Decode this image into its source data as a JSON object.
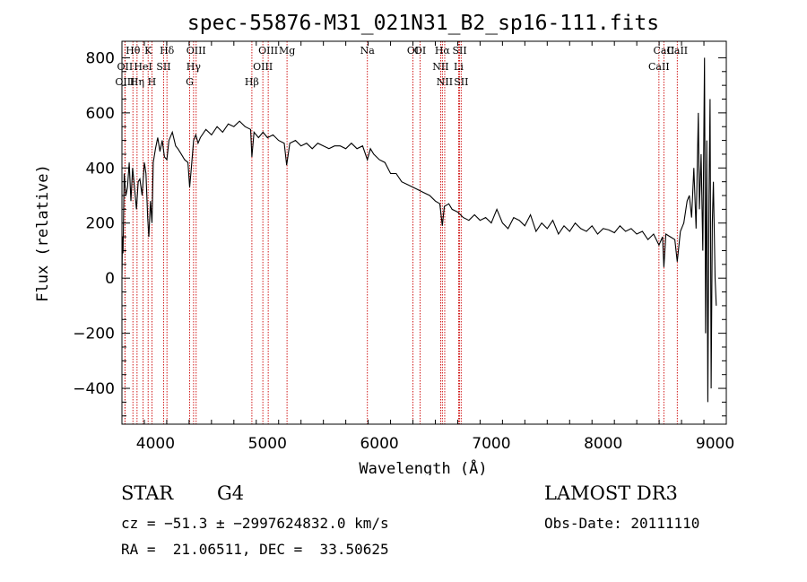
{
  "chart_data": {
    "type": "line",
    "title": "spec-55876-M31_021N31_B2_sp16-111.fits",
    "xlabel": "Wavelength (Å)",
    "ylabel": "Flux (relative)",
    "xlim": [
      3700,
      9100
    ],
    "ylim": [
      -530,
      860
    ],
    "x_ticks": [
      4000,
      5000,
      6000,
      7000,
      8000,
      9000
    ],
    "y_ticks": [
      -400,
      -200,
      0,
      200,
      400,
      600,
      800
    ],
    "grid": false,
    "series": [
      {
        "name": "flux",
        "points": [
          [
            3700,
            0
          ],
          [
            3705,
            150
          ],
          [
            3710,
            90
          ],
          [
            3720,
            380
          ],
          [
            3735,
            300
          ],
          [
            3750,
            330
          ],
          [
            3765,
            420
          ],
          [
            3780,
            280
          ],
          [
            3795,
            400
          ],
          [
            3810,
            340
          ],
          [
            3830,
            250
          ],
          [
            3845,
            350
          ],
          [
            3860,
            360
          ],
          [
            3880,
            300
          ],
          [
            3900,
            420
          ],
          [
            3915,
            380
          ],
          [
            3930,
            220
          ],
          [
            3940,
            150
          ],
          [
            3955,
            280
          ],
          [
            3968,
            200
          ],
          [
            3980,
            420
          ],
          [
            4000,
            470
          ],
          [
            4020,
            510
          ],
          [
            4040,
            460
          ],
          [
            4060,
            500
          ],
          [
            4080,
            440
          ],
          [
            4101,
            430
          ],
          [
            4120,
            500
          ],
          [
            4150,
            530
          ],
          [
            4180,
            480
          ],
          [
            4200,
            470
          ],
          [
            4230,
            450
          ],
          [
            4260,
            430
          ],
          [
            4290,
            420
          ],
          [
            4305,
            330
          ],
          [
            4320,
            400
          ],
          [
            4340,
            500
          ],
          [
            4360,
            520
          ],
          [
            4380,
            490
          ],
          [
            4400,
            510
          ],
          [
            4450,
            540
          ],
          [
            4500,
            520
          ],
          [
            4550,
            550
          ],
          [
            4600,
            530
          ],
          [
            4650,
            560
          ],
          [
            4700,
            550
          ],
          [
            4750,
            570
          ],
          [
            4800,
            550
          ],
          [
            4850,
            540
          ],
          [
            4861,
            440
          ],
          [
            4880,
            530
          ],
          [
            4920,
            510
          ],
          [
            4960,
            530
          ],
          [
            5000,
            510
          ],
          [
            5050,
            520
          ],
          [
            5100,
            500
          ],
          [
            5150,
            490
          ],
          [
            5172,
            410
          ],
          [
            5200,
            490
          ],
          [
            5250,
            500
          ],
          [
            5300,
            480
          ],
          [
            5350,
            490
          ],
          [
            5400,
            470
          ],
          [
            5450,
            490
          ],
          [
            5500,
            480
          ],
          [
            5550,
            470
          ],
          [
            5600,
            480
          ],
          [
            5650,
            480
          ],
          [
            5700,
            470
          ],
          [
            5750,
            490
          ],
          [
            5800,
            470
          ],
          [
            5850,
            480
          ],
          [
            5893,
            430
          ],
          [
            5920,
            470
          ],
          [
            5950,
            450
          ],
          [
            6000,
            430
          ],
          [
            6050,
            420
          ],
          [
            6100,
            380
          ],
          [
            6150,
            380
          ],
          [
            6200,
            350
          ],
          [
            6250,
            340
          ],
          [
            6300,
            330
          ],
          [
            6350,
            320
          ],
          [
            6400,
            310
          ],
          [
            6450,
            300
          ],
          [
            6500,
            280
          ],
          [
            6540,
            270
          ],
          [
            6563,
            190
          ],
          [
            6580,
            260
          ],
          [
            6620,
            270
          ],
          [
            6650,
            250
          ],
          [
            6700,
            240
          ],
          [
            6750,
            220
          ],
          [
            6800,
            210
          ],
          [
            6850,
            230
          ],
          [
            6900,
            210
          ],
          [
            6950,
            220
          ],
          [
            7000,
            200
          ],
          [
            7050,
            250
          ],
          [
            7100,
            200
          ],
          [
            7150,
            180
          ],
          [
            7200,
            220
          ],
          [
            7250,
            210
          ],
          [
            7300,
            190
          ],
          [
            7350,
            230
          ],
          [
            7400,
            170
          ],
          [
            7450,
            200
          ],
          [
            7500,
            180
          ],
          [
            7550,
            210
          ],
          [
            7600,
            160
          ],
          [
            7650,
            190
          ],
          [
            7700,
            170
          ],
          [
            7750,
            200
          ],
          [
            7800,
            180
          ],
          [
            7850,
            170
          ],
          [
            7900,
            190
          ],
          [
            7950,
            160
          ],
          [
            8000,
            180
          ],
          [
            8050,
            175
          ],
          [
            8100,
            165
          ],
          [
            8150,
            190
          ],
          [
            8200,
            170
          ],
          [
            8250,
            180
          ],
          [
            8300,
            160
          ],
          [
            8350,
            170
          ],
          [
            8400,
            140
          ],
          [
            8450,
            160
          ],
          [
            8498,
            120
          ],
          [
            8530,
            150
          ],
          [
            8542,
            40
          ],
          [
            8560,
            160
          ],
          [
            8600,
            150
          ],
          [
            8640,
            140
          ],
          [
            8662,
            60
          ],
          [
            8690,
            170
          ],
          [
            8720,
            200
          ],
          [
            8750,
            280
          ],
          [
            8770,
            300
          ],
          [
            8790,
            220
          ],
          [
            8810,
            400
          ],
          [
            8830,
            180
          ],
          [
            8850,
            600
          ],
          [
            8860,
            250
          ],
          [
            8875,
            450
          ],
          [
            8890,
            100
          ],
          [
            8905,
            800
          ],
          [
            8915,
            -200
          ],
          [
            8925,
            500
          ],
          [
            8935,
            -450
          ],
          [
            8945,
            300
          ],
          [
            8955,
            650
          ],
          [
            8965,
            -400
          ],
          [
            8975,
            200
          ],
          [
            8985,
            350
          ],
          [
            9000,
            0
          ],
          [
            9010,
            -100
          ]
        ]
      }
    ],
    "line_marks": [
      {
        "label": "Hθ",
        "x": 3798
      },
      {
        "label": "OII",
        "x": 3727
      },
      {
        "label": "OIII",
        "x": 3727
      },
      {
        "label": "K",
        "x": 3934
      },
      {
        "label": "HeI",
        "x": 3889
      },
      {
        "label": "Hη",
        "x": 3835
      },
      {
        "label": "H",
        "x": 3968
      },
      {
        "label": "Hδ",
        "x": 4102
      },
      {
        "label": "SII",
        "x": 4072
      },
      {
        "label": "OIII",
        "x": 4363
      },
      {
        "label": "Hγ",
        "x": 4340
      },
      {
        "label": "G",
        "x": 4305
      },
      {
        "label": "OIII",
        "x": 5007
      },
      {
        "label": "OIII",
        "x": 4959
      },
      {
        "label": "Hβ",
        "x": 4861
      },
      {
        "label": "Mg",
        "x": 5175
      },
      {
        "label": "Na",
        "x": 5893
      },
      {
        "label": "OI",
        "x": 6300
      },
      {
        "label": "OI",
        "x": 6364
      },
      {
        "label": "Hα",
        "x": 6563
      },
      {
        "label": "NII",
        "x": 6548
      },
      {
        "label": "NII",
        "x": 6584
      },
      {
        "label": "SII",
        "x": 6717
      },
      {
        "label": "Li",
        "x": 6708
      },
      {
        "label": "SII",
        "x": 6731
      },
      {
        "label": "CaII",
        "x": 8542
      },
      {
        "label": "CaII",
        "x": 8498
      },
      {
        "label": "CaII",
        "x": 8662
      }
    ]
  },
  "info": {
    "class": "STAR",
    "subclass": "G4",
    "survey": "LAMOST DR3",
    "cz": "cz = −51.3 ± −2997624832.0 km/s",
    "obs_date": "Obs-Date: 20111110",
    "coords": "RA =  21.06511, DEC =  33.50625"
  }
}
